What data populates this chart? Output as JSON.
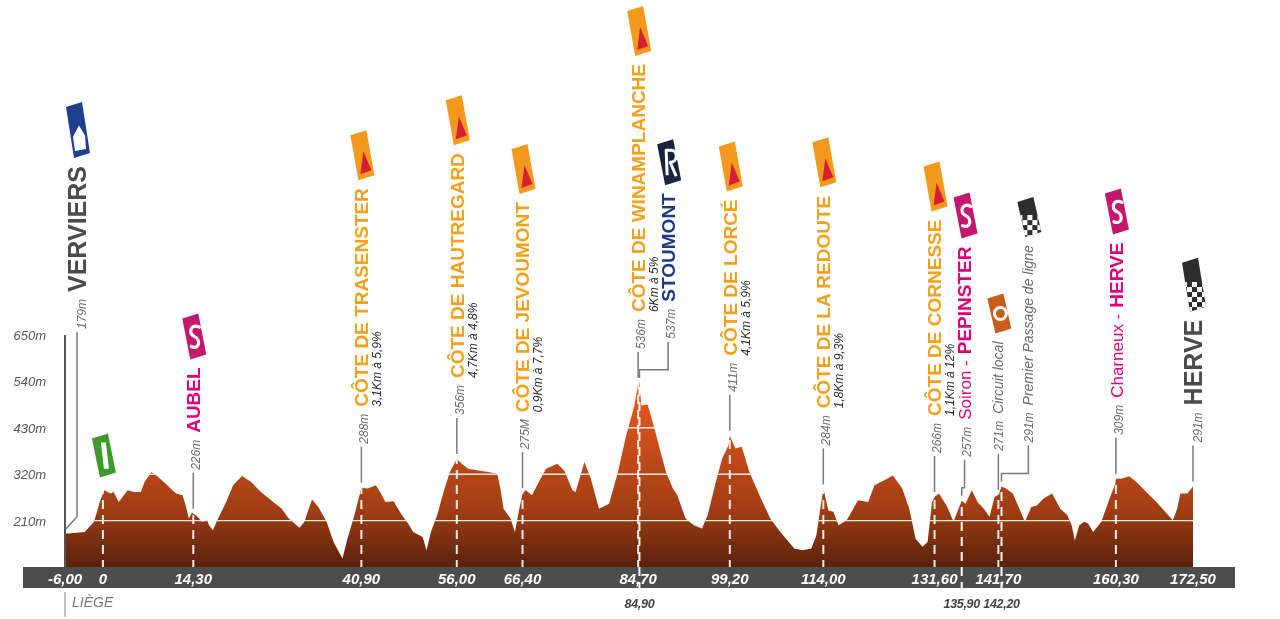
{
  "chart_data": {
    "type": "area",
    "color": "#e0561c",
    "x": [
      -6,
      -2.9,
      -1.4,
      -0.5,
      0.2,
      1.2,
      1.7,
      2.5,
      2.9,
      3.9,
      5.0,
      6.0,
      6.6,
      7.7,
      8.7,
      9.9,
      11.0,
      11.6,
      12.6,
      13.1,
      13.6,
      14.1,
      14.3,
      14.7,
      15.7,
      16.5,
      16.8,
      17.4,
      18.1,
      19.5,
      20.6,
      22.0,
      23.4,
      25.0,
      26.6,
      28.3,
      29.4,
      31.1,
      31.9,
      32.4,
      33.1,
      34.1,
      35.4,
      36.5,
      37.9,
      38.7,
      39.8,
      40.9,
      41.9,
      43.2,
      44.0,
      44.7,
      46.0,
      47.3,
      48.3,
      49.1,
      50.6,
      51.2,
      51.9,
      52.9,
      53.9,
      54.9,
      56.0,
      56.8,
      57.8,
      59.4,
      61.0,
      62.4,
      62.9,
      63.4,
      64.5,
      65.2,
      65.8,
      66.4,
      66.9,
      67.9,
      69.0,
      70.1,
      71.9,
      73.0,
      74.3,
      74.8,
      76.2,
      77.2,
      78.5,
      80.1,
      81.5,
      82.8,
      84.1,
      84.7,
      84.9,
      85.2,
      86.2,
      87.0,
      88.1,
      89.1,
      90.2,
      90.9,
      92.2,
      93.5,
      94.8,
      95.7,
      97.0,
      98.0,
      99.0,
      99.2,
      100.1,
      101.1,
      102.3,
      103.9,
      105.6,
      107.2,
      109.4,
      110.7,
      112.1,
      112.9,
      113.6,
      114.0,
      114.2,
      114.8,
      115.6,
      116.4,
      117.7,
      119.5,
      121.1,
      122.1,
      123.7,
      125.0,
      126.5,
      127.6,
      128.6,
      129.7,
      130.5,
      131.2,
      131.6,
      132.3,
      133.5,
      134.6,
      135.9,
      136.5,
      137.5,
      138.4,
      139.4,
      140.3,
      141.1,
      141.7,
      142.1,
      142.2,
      142.9,
      144.0,
      144.8,
      145.9,
      146.9,
      147.8,
      148.8,
      150.2,
      151.5,
      152.6,
      153.3,
      153.8,
      154.5,
      155.3,
      155.9,
      156.7,
      158.0,
      159.1,
      160.2,
      160.3,
      161.3,
      162.4,
      163.5,
      165.1,
      166.7,
      168.1,
      169.3,
      170.0,
      170.5,
      171.6,
      172.5
    ],
    "values": [
      179,
      183,
      207,
      254,
      282,
      274,
      278,
      254,
      262,
      282,
      278,
      278,
      302,
      325,
      314,
      298,
      282,
      274,
      270,
      246,
      215,
      229,
      226,
      223,
      207,
      210,
      199,
      187,
      211,
      254,
      294,
      316,
      302,
      278,
      258,
      238,
      215,
      193,
      207,
      231,
      260,
      242,
      207,
      159,
      120,
      167,
      223,
      288,
      286,
      294,
      274,
      254,
      256,
      223,
      203,
      183,
      171,
      140,
      183,
      223,
      278,
      325,
      356,
      345,
      333,
      329,
      325,
      321,
      286,
      238,
      215,
      183,
      231,
      275,
      282,
      270,
      302,
      333,
      345,
      329,
      282,
      278,
      349,
      310,
      238,
      250,
      325,
      412,
      483,
      536,
      537,
      483,
      485,
      444,
      381,
      325,
      286,
      270,
      215,
      199,
      191,
      223,
      302,
      357,
      389,
      411,
      381,
      385,
      325,
      270,
      215,
      183,
      144,
      140,
      144,
      175,
      246,
      284,
      274,
      234,
      231,
      199,
      211,
      258,
      254,
      294,
      306,
      317,
      286,
      238,
      167,
      148,
      159,
      254,
      266,
      274,
      246,
      208,
      257,
      250,
      282,
      254,
      238,
      219,
      266,
      271,
      286,
      291,
      286,
      274,
      246,
      207,
      242,
      246,
      262,
      274,
      238,
      223,
      199,
      163,
      199,
      207,
      203,
      183,
      207,
      254,
      298,
      309,
      310,
      315,
      302,
      278,
      254,
      231,
      211,
      238,
      274,
      274,
      291
    ],
    "xlim": [
      -6,
      172.5
    ],
    "xticks": [
      {
        "value": -6,
        "label": "-6,00"
      },
      0,
      {
        "value": 14.3,
        "label": "14,30"
      },
      {
        "value": 40.9,
        "label": "40,90"
      },
      {
        "value": 56,
        "label": "56,00"
      },
      {
        "value": 66.4,
        "label": "66,40"
      },
      {
        "value": 84.7,
        "label": "84,70"
      },
      {
        "value": 99.2,
        "label": "99,20"
      },
      {
        "value": 114,
        "label": "114,00"
      },
      {
        "value": 131.6,
        "label": "131,60"
      },
      {
        "value": 141.7,
        "label": "141,70"
      },
      {
        "value": 160.3,
        "label": "160,30"
      },
      {
        "value": 172.5,
        "label": "172,50"
      }
    ],
    "ylim": [
      100,
      650
    ],
    "yticks": [
      {
        "value": 210,
        "label": "210m"
      },
      {
        "value": 320,
        "label": "320m"
      },
      {
        "value": 430,
        "label": "430m"
      },
      {
        "value": 540,
        "label": "540m"
      },
      {
        "value": 650,
        "label": "650m"
      }
    ],
    "grid": true,
    "ref_lines": [
      {
        "axis": "x",
        "value": 84.9,
        "label": "84,90",
        "color": "#ffffff",
        "line_style": "dashed"
      },
      {
        "axis": "x",
        "value": 135.9,
        "label": "135,90",
        "color": "#ffffff",
        "line_style": "dashed"
      },
      {
        "axis": "x",
        "value": 142.2,
        "label": "142,20",
        "color": "#ffffff",
        "line_style": "dashed"
      }
    ],
    "annotations": [
      {
        "text": "179m VERVIERS",
        "x": -6,
        "y": 179
      },
      {
        "text": "226m AUBEL",
        "x": 14.3,
        "y": 226
      },
      {
        "text": "288m CÔTE DE TRASENSTER\n3,1Km à 5,9%",
        "x": 40.9,
        "y": 288
      },
      {
        "text": "356m CÔTE DE HAUTREGARD\n4,7Km à 4,8%",
        "x": 56,
        "y": 356
      },
      {
        "text": "275M CÔTE DE JEVOUMONT\n0,9Km à 7,7%",
        "x": 66.4,
        "y": 275
      },
      {
        "text": "536m CÔTE DE WINAMPLANCHE\n6Km à 5%",
        "x": 84.7,
        "y": 536
      },
      {
        "text": "537m STOUMONT",
        "x": 84.9,
        "y": 537
      },
      {
        "text": "411m CÔTE DE LORCÉ\n4,1Km à 5,9%",
        "x": 99.2,
        "y": 411
      },
      {
        "text": "284m CÔTE DE LA REDOUTE\n1,8Km à 9,3%",
        "x": 114,
        "y": 284
      },
      {
        "text": "266m CÔTE DE CORNESSE\n1,1Km à 12%",
        "x": 131.6,
        "y": 266
      },
      {
        "text": "257m Soiron - PEPINSTER",
        "x": 135.9,
        "y": 257
      },
      {
        "text": "271m Circuit local",
        "x": 141.7,
        "y": 271
      },
      {
        "text": "291m Premier Passage de ligne",
        "x": 142.2,
        "y": 291
      },
      {
        "text": "309m Charneux - HERVE",
        "x": 160.3,
        "y": 309
      },
      {
        "text": "291m HERVE",
        "x": 172.5,
        "y": 291
      },
      "LIÈGE"
    ]
  }
}
